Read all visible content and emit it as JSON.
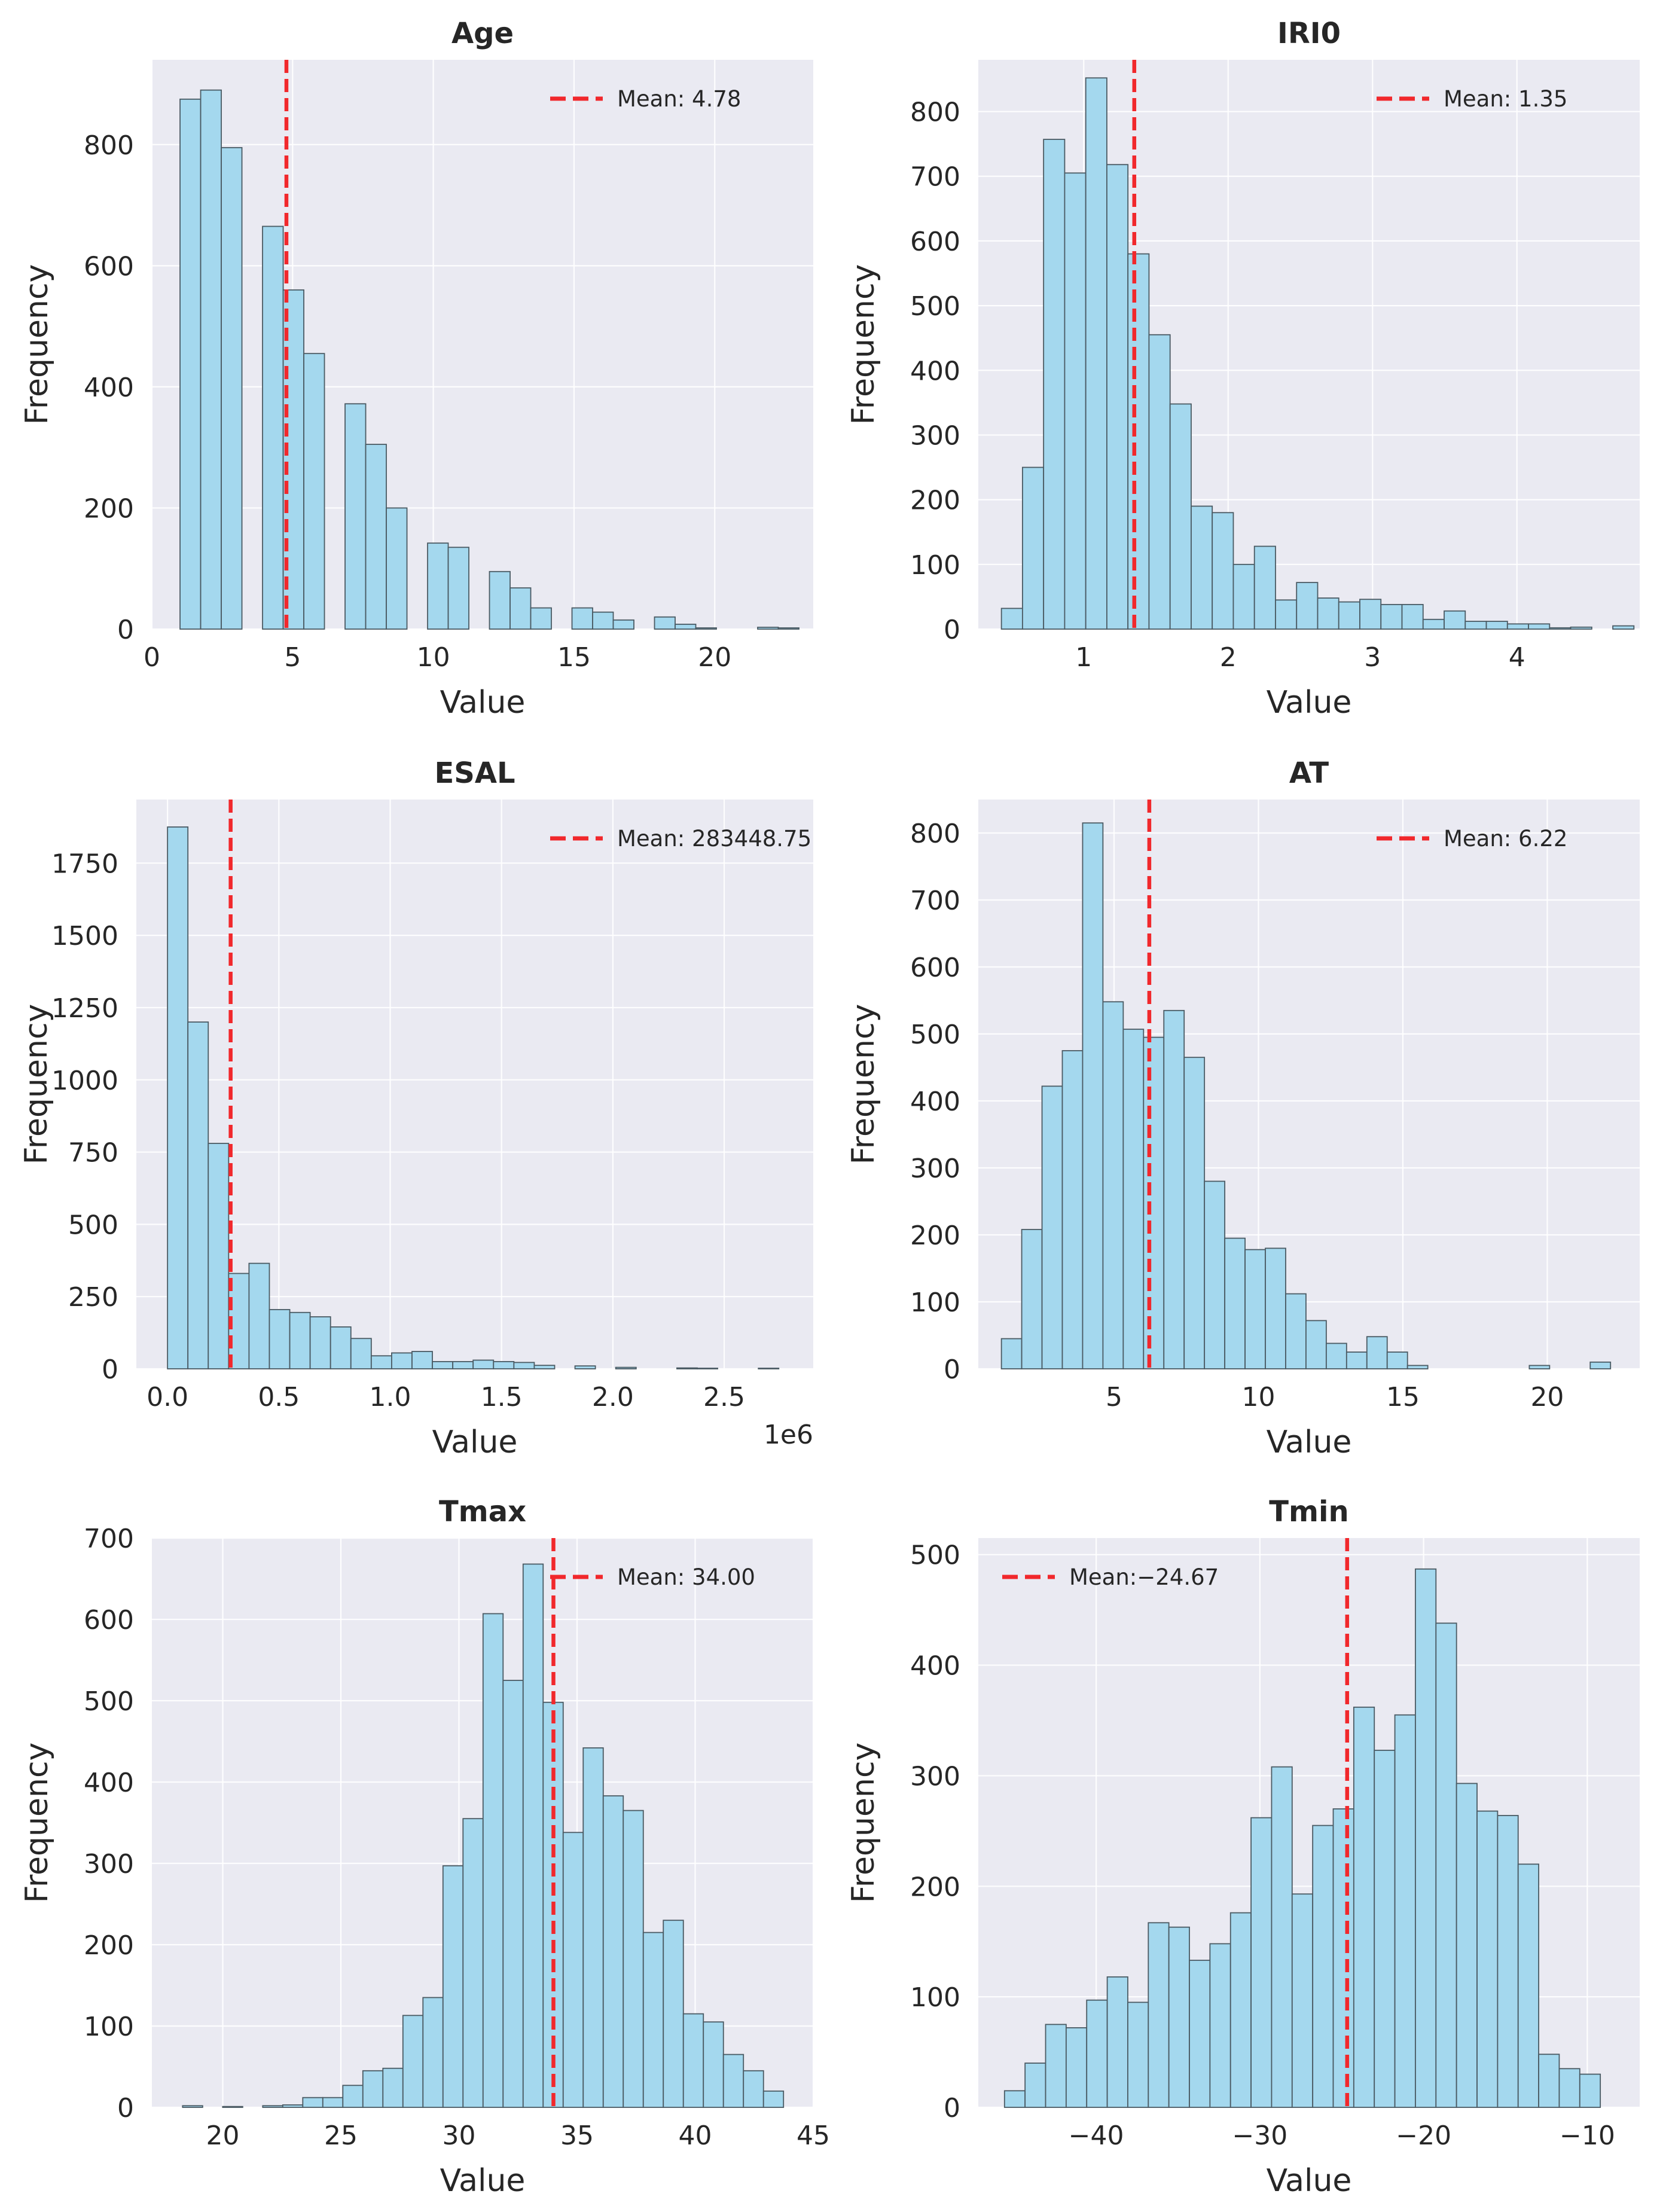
{
  "figure": {
    "background": "#ffffff",
    "axes_background": "#eaeaf2",
    "grid_color": "#ffffff",
    "bar_fill": "#a4d8ee",
    "bar_edge": "#4a5a63",
    "mean_line_color": "#f1282c"
  },
  "chart_data": [
    {
      "id": "age",
      "type": "bar",
      "title": "Age",
      "xlabel": "Value",
      "ylabel": "Frequency",
      "xlim": [
        0,
        23.5
      ],
      "ylim": [
        0,
        940
      ],
      "xticks": [
        0,
        5,
        10,
        15,
        20
      ],
      "xtick_labels": [
        "0",
        "5",
        "10",
        "15",
        "20"
      ],
      "yticks": [
        0,
        200,
        400,
        600,
        800
      ],
      "ytick_labels": [
        "0",
        "200",
        "400",
        "600",
        "800"
      ],
      "bins": {
        "start": 1.0,
        "width": 0.733
      },
      "values": [
        875,
        890,
        795,
        0,
        665,
        560,
        455,
        0,
        372,
        305,
        200,
        0,
        142,
        135,
        0,
        95,
        68,
        35,
        0,
        35,
        28,
        15,
        0,
        20,
        8,
        2,
        0,
        0,
        3,
        2
      ],
      "mean": 4.78,
      "legend": {
        "label": "Mean: 4.78",
        "position": "upper right"
      },
      "x_offset_text": "",
      "grid": true
    },
    {
      "id": "iri0",
      "type": "bar",
      "title": "IRI0",
      "xlabel": "Value",
      "ylabel": "Frequency",
      "xlim": [
        0.27,
        4.85
      ],
      "ylim": [
        0,
        880
      ],
      "xticks": [
        1,
        2,
        3,
        4
      ],
      "xtick_labels": [
        "1",
        "2",
        "3",
        "4"
      ],
      "yticks": [
        0,
        100,
        200,
        300,
        400,
        500,
        600,
        700,
        800
      ],
      "ytick_labels": [
        "0",
        "100",
        "200",
        "300",
        "400",
        "500",
        "600",
        "700",
        "800"
      ],
      "bins": {
        "start": 0.43,
        "width": 0.146
      },
      "values": [
        32,
        250,
        757,
        705,
        852,
        718,
        580,
        455,
        348,
        190,
        180,
        100,
        128,
        45,
        72,
        48,
        42,
        46,
        38,
        38,
        15,
        28,
        12,
        12,
        8,
        8,
        2,
        3,
        0,
        5
      ],
      "mean": 1.35,
      "legend": {
        "label": "Mean: 1.35",
        "position": "upper right"
      },
      "x_offset_text": "",
      "grid": true
    },
    {
      "id": "esal",
      "type": "bar",
      "title": "ESAL",
      "xlabel": "Value",
      "ylabel": "Frequency",
      "xlim": [
        -0.14,
        2.9
      ],
      "ylim": [
        0,
        1970
      ],
      "xticks": [
        0.0,
        0.5,
        1.0,
        1.5,
        2.0,
        2.5
      ],
      "xtick_labels": [
        "0.0",
        "0.5",
        "1.0",
        "1.5",
        "2.0",
        "2.5"
      ],
      "yticks": [
        0,
        250,
        500,
        750,
        1000,
        1250,
        1500,
        1750
      ],
      "ytick_labels": [
        "0",
        "250",
        "500",
        "750",
        "1000",
        "1250",
        "1500",
        "1750"
      ],
      "bins": {
        "start": 0.0,
        "width": 0.0915
      },
      "values": [
        1875,
        1200,
        780,
        330,
        365,
        205,
        195,
        180,
        145,
        105,
        45,
        55,
        60,
        25,
        25,
        30,
        25,
        22,
        12,
        0,
        10,
        0,
        5,
        0,
        0,
        3,
        2,
        0,
        0,
        2
      ],
      "mean": 0.28344875,
      "legend": {
        "label": "Mean: 283448.75",
        "position": "upper right"
      },
      "x_offset_text": "1e6",
      "grid": true
    },
    {
      "id": "at",
      "type": "bar",
      "title": "AT",
      "xlabel": "Value",
      "ylabel": "Frequency",
      "xlim": [
        0.3,
        23.2
      ],
      "ylim": [
        0,
        850
      ],
      "xticks": [
        5,
        10,
        15,
        20
      ],
      "xtick_labels": [
        "5",
        "10",
        "15",
        "20"
      ],
      "yticks": [
        0,
        100,
        200,
        300,
        400,
        500,
        600,
        700,
        800
      ],
      "ytick_labels": [
        "0",
        "100",
        "200",
        "300",
        "400",
        "500",
        "600",
        "700",
        "800"
      ],
      "bins": {
        "start": 1.1,
        "width": 0.703
      },
      "values": [
        45,
        208,
        422,
        475,
        815,
        548,
        507,
        495,
        535,
        465,
        280,
        195,
        178,
        180,
        112,
        72,
        38,
        25,
        48,
        25,
        5,
        0,
        0,
        0,
        0,
        0,
        5,
        0,
        0,
        10
      ],
      "mean": 6.22,
      "legend": {
        "label": "Mean: 6.22",
        "position": "upper right"
      },
      "x_offset_text": "",
      "grid": true
    },
    {
      "id": "tmax",
      "type": "bar",
      "title": "Tmax",
      "xlabel": "Value",
      "ylabel": "Frequency",
      "xlim": [
        17.0,
        45.0
      ],
      "ylim": [
        0,
        700
      ],
      "xticks": [
        20,
        25,
        30,
        35,
        40,
        45
      ],
      "xtick_labels": [
        "20",
        "25",
        "30",
        "35",
        "40",
        "45"
      ],
      "yticks": [
        0,
        100,
        200,
        300,
        400,
        500,
        600,
        700
      ],
      "ytick_labels": [
        "0",
        "100",
        "200",
        "300",
        "400",
        "500",
        "600",
        "700"
      ],
      "bins": {
        "start": 18.3,
        "width": 0.848
      },
      "values": [
        2,
        0,
        1,
        0,
        2,
        3,
        12,
        12,
        27,
        45,
        48,
        113,
        135,
        297,
        355,
        607,
        525,
        668,
        498,
        338,
        442,
        383,
        365,
        215,
        230,
        115,
        105,
        65,
        45,
        20
      ],
      "mean": 34.0,
      "legend": {
        "label": "Mean: 34.00",
        "position": "upper right"
      },
      "x_offset_text": "",
      "grid": true
    },
    {
      "id": "tmin",
      "type": "bar",
      "title": "Tmin",
      "xlabel": "Value",
      "ylabel": "Frequency",
      "xlim": [
        -47.2,
        -6.8
      ],
      "ylim": [
        0,
        515
      ],
      "xticks": [
        -40,
        -30,
        -20,
        -10
      ],
      "xtick_labels": [
        "−40",
        "−30",
        "−20",
        "−10"
      ],
      "yticks": [
        0,
        100,
        200,
        300,
        400,
        500
      ],
      "ytick_labels": [
        "0",
        "100",
        "200",
        "300",
        "400",
        "500"
      ],
      "bins": {
        "start": -45.6,
        "width": 1.255
      },
      "values": [
        15,
        40,
        75,
        72,
        97,
        118,
        95,
        167,
        163,
        133,
        148,
        176,
        262,
        308,
        193,
        255,
        270,
        362,
        323,
        355,
        487,
        438,
        293,
        268,
        264,
        220,
        48,
        35,
        30,
        0
      ],
      "mean": -24.67,
      "legend": {
        "label": "Mean:−24.67",
        "position": "upper left"
      },
      "x_offset_text": "",
      "grid": true
    }
  ]
}
